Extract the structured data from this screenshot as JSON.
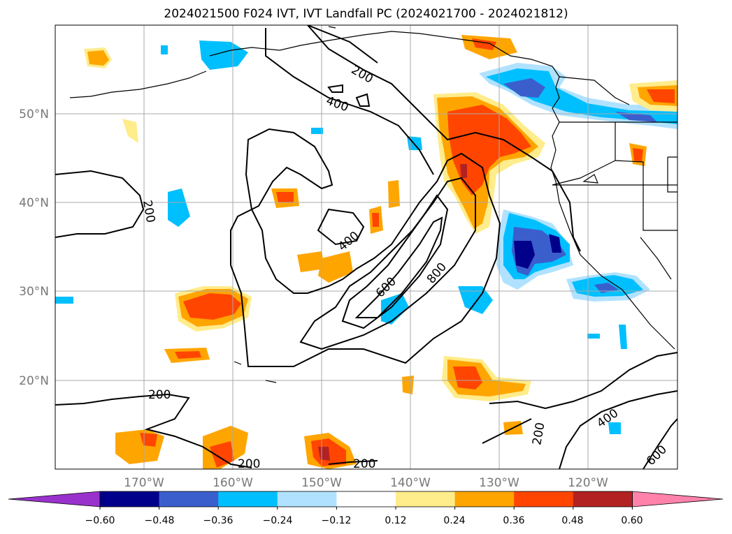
{
  "title": "2024021500 F024 IVT, IVT Landfall PC (2024021700 - 2024021812)",
  "map": {
    "lat_labels": [
      "50°N",
      "40°N",
      "30°N",
      "20°N"
    ],
    "lon_labels": [
      "170°W",
      "160°W",
      "150°W",
      "140°W",
      "130°W",
      "120°W"
    ],
    "contour_labels": [
      {
        "text": "200",
        "name": "contour-label-200-north"
      },
      {
        "text": "400",
        "name": "contour-label-400-north"
      },
      {
        "text": "200",
        "name": "contour-label-200-west"
      },
      {
        "text": "400",
        "name": "contour-label-400-center"
      },
      {
        "text": "600",
        "name": "contour-label-600"
      },
      {
        "text": "800",
        "name": "contour-label-800"
      },
      {
        "text": "200",
        "name": "contour-label-200-southwest"
      },
      {
        "text": "200",
        "name": "contour-label-200-south-a"
      },
      {
        "text": "200",
        "name": "contour-label-200-south-b"
      },
      {
        "text": "200",
        "name": "contour-label-200-southeast"
      },
      {
        "text": "400",
        "name": "contour-label-400-southeast"
      },
      {
        "text": "600",
        "name": "contour-label-600-southeast"
      }
    ]
  },
  "colorbar": {
    "ticks": [
      "−0.60",
      "−0.48",
      "−0.36",
      "−0.24",
      "−0.12",
      "0.12",
      "0.24",
      "0.36",
      "0.48",
      "0.60"
    ],
    "colors": [
      "#9932cc",
      "#00008b",
      "#3a5fcd",
      "#00bfff",
      "#b0e2ff",
      "#ffffff",
      "#ffec8b",
      "#ffa500",
      "#ff4500",
      "#b22222",
      "#ff82ab"
    ]
  },
  "palette": {
    "ocean_bg": "#ffffff",
    "grid": "#a9a9a9",
    "coast": "#000000",
    "axis_label": "#777777"
  }
}
